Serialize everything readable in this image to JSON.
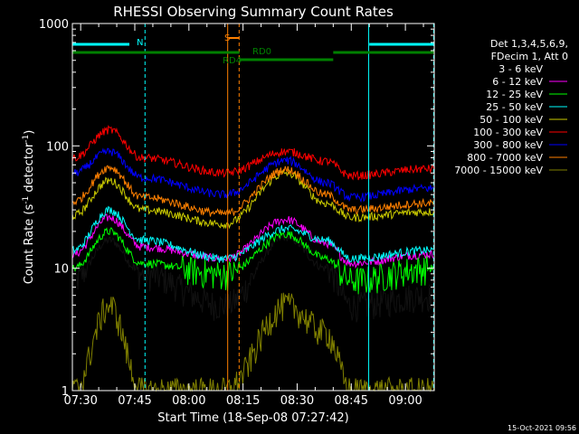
{
  "chart_data": {
    "type": "line",
    "title": "RHESSI Observing Summary Count Rates",
    "xlabel": "Start Time (18-Sep-08 07:27:42)",
    "ylabel_main": "Count Rate (s",
    "ylabel_sup1": "-1",
    "ylabel_mid": " detector",
    "ylabel_sup2": "-1",
    "ylabel_end": ")",
    "yscale": "log",
    "ylim": [
      1,
      1000
    ],
    "xlim": [
      "07:27:42",
      "09:08:00"
    ],
    "x_ticks": [
      "07:30",
      "07:45",
      "08:00",
      "08:15",
      "08:30",
      "08:45",
      "09:00"
    ],
    "y_ticks": [
      "1",
      "10",
      "100",
      "1000"
    ],
    "timestamp": "15-Oct-2021 09:56",
    "legend_header": [
      "Det 1,3,4,5,6,9,",
      "FDecim 1, Att 0"
    ],
    "legend_position": "right",
    "series": [
      {
        "name": "3 - 6 keV",
        "color": "#000000",
        "t": [
          "07:28",
          "07:38",
          "07:47",
          "08:10",
          "08:27",
          "08:38",
          "08:45",
          "09:06"
        ],
        "values": [
          8,
          17,
          9,
          5,
          18,
          10,
          5,
          6
        ]
      },
      {
        "name": "6 - 12 keV",
        "color": "#ff00ff",
        "t": [
          "07:28",
          "07:38",
          "07:47",
          "08:10",
          "08:27",
          "08:38",
          "08:45",
          "09:06"
        ],
        "values": [
          13,
          26,
          15,
          12,
          25,
          16,
          11,
          13
        ]
      },
      {
        "name": "12 - 25 keV",
        "color": "#00ff00",
        "t": [
          "07:28",
          "07:38",
          "07:47",
          "08:10",
          "08:27",
          "08:38",
          "08:45",
          "09:06"
        ],
        "values": [
          10,
          20,
          11,
          9,
          19,
          12,
          8,
          10
        ]
      },
      {
        "name": "25 - 50 keV",
        "color": "#00ffff",
        "t": [
          "07:28",
          "07:38",
          "07:47",
          "08:10",
          "08:27",
          "08:38",
          "08:45",
          "09:06"
        ],
        "values": [
          14,
          30,
          17,
          12,
          21,
          17,
          12,
          14
        ]
      },
      {
        "name": "50 - 100 keV",
        "color": "#cccc00",
        "t": [
          "07:28",
          "07:38",
          "07:47",
          "08:10",
          "08:27",
          "08:38",
          "08:45",
          "09:06"
        ],
        "values": [
          27,
          52,
          30,
          23,
          60,
          34,
          26,
          29
        ]
      },
      {
        "name": "100 - 300 keV",
        "color": "#ff0000",
        "t": [
          "07:28",
          "07:38",
          "07:47",
          "08:10",
          "08:27",
          "08:38",
          "08:45",
          "09:06"
        ],
        "values": [
          80,
          135,
          80,
          60,
          90,
          75,
          57,
          65
        ]
      },
      {
        "name": "300 - 800 keV",
        "color": "#0000ff",
        "t": [
          "07:28",
          "07:38",
          "07:47",
          "08:10",
          "08:27",
          "08:38",
          "08:45",
          "09:06"
        ],
        "values": [
          60,
          90,
          55,
          40,
          76,
          50,
          38,
          45
        ]
      },
      {
        "name": "800 - 7000 keV",
        "color": "#ff8000",
        "t": [
          "07:28",
          "07:38",
          "07:47",
          "08:10",
          "08:27",
          "08:38",
          "08:45",
          "09:06"
        ],
        "values": [
          35,
          67,
          38,
          28,
          64,
          40,
          30,
          34
        ]
      },
      {
        "name": "7000 - 15000 keV",
        "color": "#808000",
        "t": [
          "07:28",
          "07:38",
          "07:47",
          "08:10",
          "08:27",
          "08:38",
          "08:45",
          "09:06"
        ],
        "values": [
          1,
          5,
          1,
          1,
          5,
          3,
          1,
          1
        ]
      }
    ],
    "annotations": [
      {
        "label": "N",
        "color": "#00ffff"
      },
      {
        "label": "S",
        "color": "#ff8000"
      },
      {
        "label": "RD4",
        "color": "#008000"
      },
      {
        "label": "RD0",
        "color": "#008000"
      }
    ]
  }
}
